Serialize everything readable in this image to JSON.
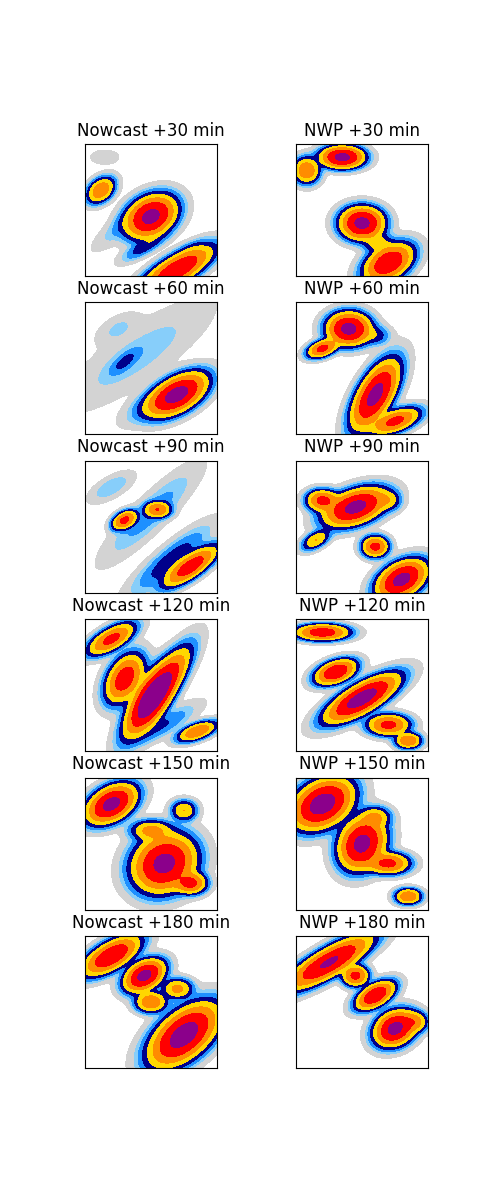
{
  "chart_data": {
    "type": "precipitation_fields",
    "tick_labels": false,
    "domain": [
      0,
      100
    ],
    "levels": [
      0.1,
      0.5,
      1,
      2,
      4,
      8,
      16,
      32,
      200
    ],
    "colors": [
      "#d3d3d3",
      "#87cefa",
      "#1e90ff",
      "#00008b",
      "#ffd700",
      "#ff8c00",
      "#ff0000",
      "#8b008b"
    ],
    "panels": [
      {
        "title": "Nowcast +30 min",
        "cells": [
          [
            12,
            35,
            6,
            4,
            -40,
            15
          ],
          [
            50,
            55,
            10,
            7,
            -30,
            40
          ],
          [
            70,
            95,
            15,
            5,
            -30,
            30
          ],
          [
            30,
            60,
            15,
            4,
            -40,
            1
          ],
          [
            80,
            80,
            8,
            3,
            -30,
            1
          ],
          [
            15,
            10,
            6,
            3,
            0,
            0.5
          ],
          [
            45,
            78,
            10,
            3,
            -30,
            3
          ]
        ]
      },
      {
        "title": "NWP +30 min",
        "cells": [
          [
            35,
            10,
            8,
            4,
            0,
            40
          ],
          [
            50,
            60,
            8,
            6,
            0,
            40
          ],
          [
            70,
            90,
            10,
            6,
            -30,
            30
          ],
          [
            8,
            20,
            5,
            5,
            0,
            15
          ],
          [
            62,
            75,
            6,
            4,
            0,
            5
          ]
        ]
      },
      {
        "title": "Nowcast +60 min",
        "cells": [
          [
            40,
            40,
            35,
            10,
            -35,
            0.8
          ],
          [
            70,
            70,
            12,
            6,
            -30,
            40
          ],
          [
            60,
            72,
            15,
            5,
            -30,
            4
          ],
          [
            30,
            45,
            8,
            3,
            -40,
            2
          ],
          [
            25,
            20,
            10,
            5,
            -30,
            0.6
          ]
        ]
      },
      {
        "title": "NWP +60 min",
        "cells": [
          [
            40,
            20,
            8,
            6,
            0,
            40
          ],
          [
            20,
            35,
            6,
            3,
            -20,
            20
          ],
          [
            60,
            70,
            6,
            14,
            30,
            40
          ],
          [
            75,
            90,
            10,
            4,
            -20,
            20
          ],
          [
            60,
            25,
            6,
            4,
            0,
            3
          ]
        ]
      },
      {
        "title": "Nowcast +90 min",
        "cells": [
          [
            50,
            40,
            25,
            6,
            -45,
            1.5
          ],
          [
            30,
            45,
            5,
            3,
            -30,
            20
          ],
          [
            55,
            37,
            5,
            3,
            0,
            15
          ],
          [
            80,
            80,
            12,
            4,
            -35,
            25
          ],
          [
            65,
            75,
            20,
            5,
            -40,
            3
          ],
          [
            20,
            20,
            10,
            4,
            -30,
            1
          ]
        ]
      },
      {
        "title": "NWP +90 min",
        "cells": [
          [
            45,
            35,
            12,
            6,
            -20,
            40
          ],
          [
            20,
            30,
            6,
            4,
            0,
            20
          ],
          [
            80,
            90,
            10,
            6,
            -30,
            40
          ],
          [
            60,
            65,
            5,
            4,
            0,
            20
          ],
          [
            15,
            60,
            6,
            3,
            -30,
            8
          ],
          [
            70,
            30,
            5,
            4,
            0,
            5
          ]
        ]
      },
      {
        "title": "Nowcast +120 min",
        "cells": [
          [
            50,
            60,
            6,
            14,
            30,
            30
          ],
          [
            55,
            55,
            5,
            18,
            35,
            40
          ],
          [
            20,
            15,
            10,
            4,
            -30,
            20
          ],
          [
            30,
            45,
            6,
            10,
            30,
            25
          ],
          [
            85,
            85,
            8,
            3,
            -20,
            15
          ],
          [
            60,
            80,
            15,
            4,
            -30,
            2
          ]
        ]
      },
      {
        "title": "NWP +120 min",
        "cells": [
          [
            50,
            60,
            15,
            5,
            -30,
            45
          ],
          [
            30,
            40,
            8,
            4,
            -20,
            30
          ],
          [
            20,
            10,
            10,
            3,
            0,
            25
          ],
          [
            70,
            80,
            8,
            4,
            0,
            20
          ],
          [
            85,
            92,
            5,
            3,
            0,
            15
          ]
        ]
      },
      {
        "title": "Nowcast +150 min",
        "cells": [
          [
            20,
            20,
            10,
            6,
            -30,
            40
          ],
          [
            60,
            65,
            12,
            10,
            -30,
            40
          ],
          [
            50,
            40,
            8,
            4,
            0,
            10
          ],
          [
            75,
            25,
            5,
            4,
            0,
            8
          ],
          [
            80,
            80,
            6,
            4,
            0,
            20
          ]
        ]
      },
      {
        "title": "NWP +150 min",
        "cells": [
          [
            20,
            20,
            12,
            8,
            -30,
            45
          ],
          [
            50,
            50,
            8,
            10,
            30,
            40
          ],
          [
            70,
            65,
            8,
            4,
            0,
            20
          ],
          [
            85,
            90,
            5,
            3,
            0,
            15
          ],
          [
            60,
            30,
            6,
            4,
            0,
            8
          ]
        ]
      },
      {
        "title": "Nowcast +180 min",
        "cells": [
          [
            20,
            15,
            12,
            5,
            -30,
            30
          ],
          [
            45,
            30,
            8,
            5,
            -30,
            40
          ],
          [
            75,
            75,
            15,
            8,
            -40,
            45
          ],
          [
            50,
            50,
            6,
            4,
            0,
            15
          ],
          [
            70,
            40,
            6,
            4,
            0,
            10
          ]
        ]
      },
      {
        "title": "NWP +180 min",
        "cells": [
          [
            25,
            20,
            18,
            5,
            -30,
            35
          ],
          [
            60,
            45,
            8,
            4,
            -30,
            30
          ],
          [
            75,
            70,
            8,
            6,
            -30,
            40
          ],
          [
            45,
            30,
            5,
            4,
            0,
            20
          ],
          [
            90,
            65,
            5,
            4,
            0,
            10
          ]
        ]
      }
    ]
  }
}
